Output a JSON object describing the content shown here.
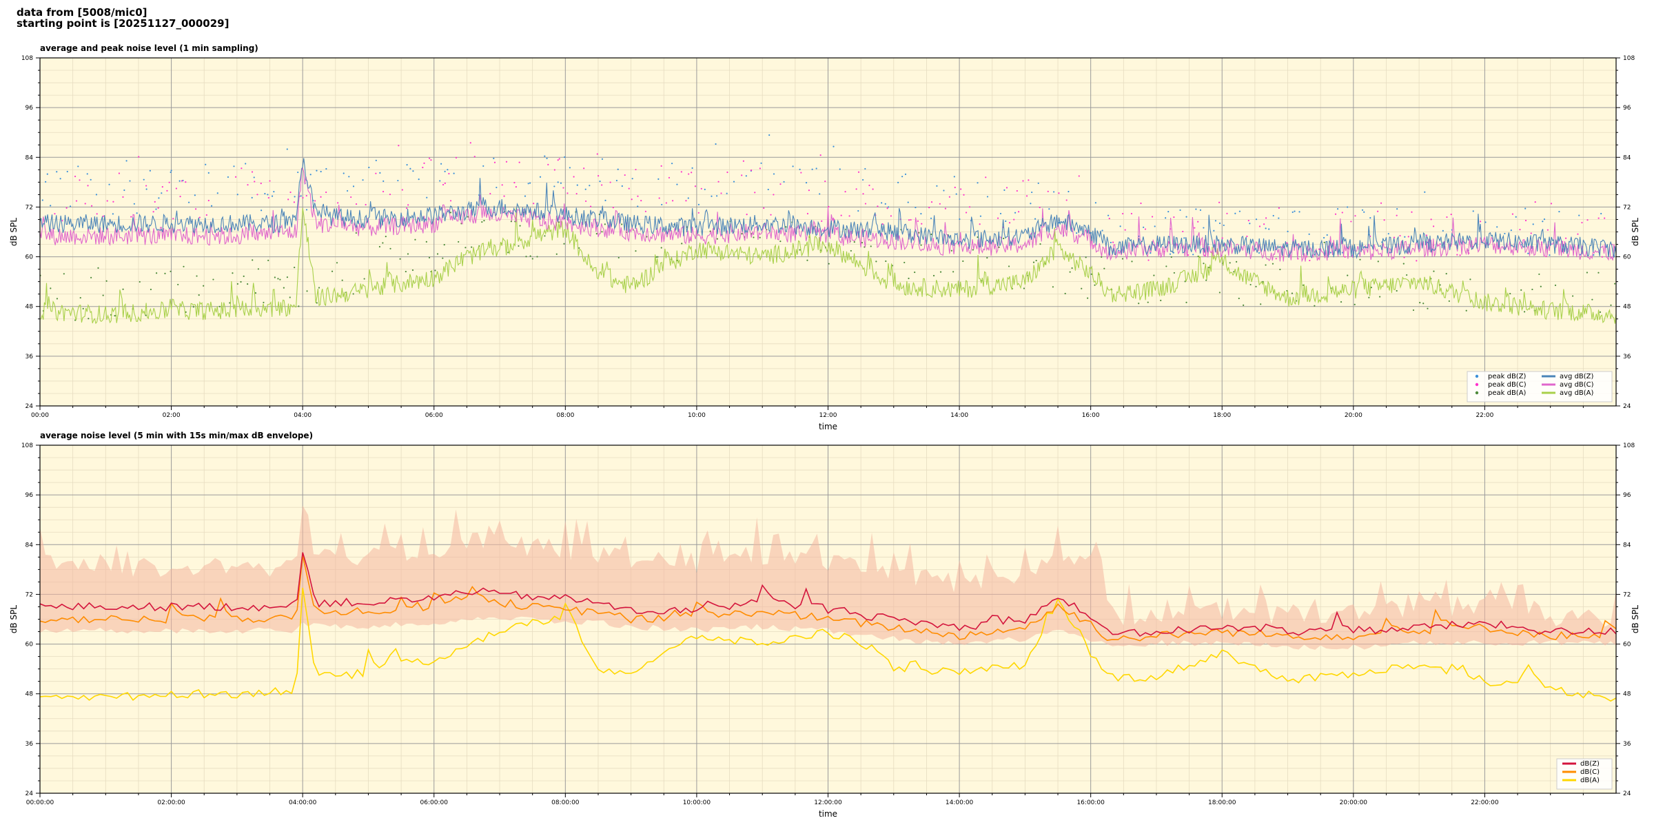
{
  "header": {
    "line1": "data from [5008/mic0]",
    "line2": "starting point is [20251127_000029]"
  },
  "colors": {
    "plot_bg": "#fff8dc",
    "grid_major": "#9a9a9a",
    "grid_minor": "#e6dcc0",
    "peak_z": "#3a8fd9",
    "peak_c": "#ff33cc",
    "peak_a": "#4d8a3a",
    "avg_z": "#4a84b8",
    "avg_c": "#e066cc",
    "avg_a": "#a8d04a",
    "dbz": "#d4143c",
    "dbc": "#ff8c00",
    "dba": "#ffd700",
    "envelope": "#f4b6a0"
  },
  "chart_data": [
    {
      "type": "line",
      "title": "average and peak noise level (1 min sampling)",
      "xlabel": "time",
      "ylabel": "dB SPL",
      "ylabel_right": "dB SPL",
      "xlim_hours": [
        0,
        24
      ],
      "ylim": [
        24,
        108
      ],
      "yticks": [
        "24",
        "36",
        "48",
        "60",
        "72",
        "84",
        "96",
        "108"
      ],
      "xticks": [
        "00:00",
        "02:00",
        "04:00",
        "06:00",
        "08:00",
        "10:00",
        "12:00",
        "14:00",
        "16:00",
        "18:00",
        "20:00",
        "22:00"
      ],
      "grid": true,
      "legend_position": "bottom-right",
      "legend": [
        {
          "label": "peak dB(Z)",
          "kind": "dot",
          "color_key": "peak_z"
        },
        {
          "label": "peak dB(C)",
          "kind": "dot",
          "color_key": "peak_c"
        },
        {
          "label": "peak dB(A)",
          "kind": "dot",
          "color_key": "peak_a"
        },
        {
          "label": "avg dB(Z)",
          "kind": "line",
          "color_key": "avg_z"
        },
        {
          "label": "avg dB(C)",
          "kind": "line",
          "color_key": "avg_c"
        },
        {
          "label": "avg dB(A)",
          "kind": "line",
          "color_key": "avg_a"
        }
      ],
      "series": [
        {
          "name": "avg dB(Z)",
          "x": [
            0,
            1,
            2,
            3,
            3.9,
            4.0,
            4.2,
            5,
            6,
            6.5,
            7,
            8,
            8.5,
            9,
            10,
            11,
            12,
            13,
            14,
            15,
            15.5,
            16,
            16.3,
            17,
            18,
            19,
            20,
            21,
            22,
            23,
            24
          ],
          "y": [
            68,
            68,
            68,
            68,
            68,
            84,
            70,
            69,
            70,
            71,
            72,
            70,
            69,
            68,
            67,
            68,
            67,
            66,
            64,
            65,
            69,
            66,
            62,
            63,
            63,
            62,
            62,
            63,
            64,
            63,
            62
          ]
        },
        {
          "name": "avg dB(C)",
          "x": [
            0,
            1,
            2,
            3,
            3.9,
            4.0,
            4.2,
            5,
            6,
            6.5,
            7,
            8,
            8.5,
            9,
            10,
            11,
            12,
            13,
            14,
            15,
            15.5,
            16,
            16.3,
            17,
            18,
            19,
            20,
            21,
            22,
            23,
            24
          ],
          "y": [
            65,
            65,
            65,
            65,
            66,
            82,
            68,
            67,
            68,
            70,
            70,
            68,
            67,
            66,
            65,
            66,
            65,
            64,
            62,
            63,
            67,
            64,
            61,
            62,
            62,
            61,
            61,
            62,
            63,
            62,
            61
          ]
        },
        {
          "name": "avg dB(A)",
          "x": [
            0,
            1,
            2,
            3,
            3.9,
            4.0,
            4.2,
            5,
            6,
            6.5,
            7,
            8,
            8.5,
            9,
            10,
            11,
            12,
            13,
            14,
            15,
            15.5,
            16,
            16.3,
            17,
            18,
            19,
            20,
            21,
            22,
            23,
            24
          ],
          "y": [
            47,
            46,
            47,
            47,
            48,
            72,
            50,
            52,
            55,
            60,
            62,
            67,
            55,
            53,
            62,
            60,
            63,
            53,
            52,
            54,
            62,
            56,
            51,
            52,
            58,
            50,
            52,
            54,
            49,
            47,
            46
          ]
        }
      ],
      "peak_ranges": [
        {
          "name": "peak dB(Z)",
          "x": [
            0,
            4,
            7,
            9,
            12,
            15,
            16.3,
            20,
            24
          ],
          "y": [
            76,
            77,
            80,
            78,
            76,
            74,
            66,
            66,
            66
          ]
        },
        {
          "name": "peak dB(C)",
          "x": [
            0,
            4,
            7,
            9,
            12,
            15,
            16.3,
            20,
            24
          ],
          "y": [
            74,
            76,
            79,
            77,
            74,
            73,
            65,
            65,
            65
          ]
        },
        {
          "name": "peak dB(A)",
          "x": [
            0,
            4,
            7,
            9,
            12,
            15,
            16.3,
            20,
            24
          ],
          "y": [
            50,
            54,
            66,
            64,
            62,
            58,
            54,
            54,
            50
          ]
        }
      ]
    },
    {
      "type": "line",
      "title": "average noise level (5 min with 15s min/max dB envelope)",
      "xlabel": "time",
      "ylabel": "dB SPL",
      "ylabel_right": "dB SPL",
      "xlim_hours": [
        0,
        24
      ],
      "ylim": [
        24,
        108
      ],
      "yticks": [
        "24",
        "36",
        "48",
        "60",
        "72",
        "84",
        "96",
        "108"
      ],
      "xticks": [
        "00:00:00",
        "02:00:00",
        "04:00:00",
        "06:00:00",
        "08:00:00",
        "10:00:00",
        "12:00:00",
        "14:00:00",
        "16:00:00",
        "18:00:00",
        "20:00:00",
        "22:00:00"
      ],
      "grid": true,
      "legend_position": "bottom-right",
      "legend": [
        {
          "label": "dB(Z)",
          "kind": "line",
          "color_key": "dbz"
        },
        {
          "label": "dB(C)",
          "kind": "line",
          "color_key": "dbc"
        },
        {
          "label": "dB(A)",
          "kind": "line",
          "color_key": "dba"
        }
      ],
      "series": [
        {
          "name": "dB(Z)",
          "x": [
            0,
            1,
            2,
            3,
            3.9,
            4.0,
            4.2,
            5,
            6,
            6.5,
            7,
            8,
            8.5,
            9,
            10,
            11,
            12,
            13,
            14,
            15,
            15.5,
            16,
            16.3,
            17,
            18,
            19,
            20,
            21,
            22,
            23,
            24
          ],
          "y": [
            69,
            69,
            69,
            69,
            69,
            83,
            70,
            70,
            71,
            73,
            72,
            71,
            70,
            68,
            68,
            70,
            68,
            66,
            64,
            66,
            71,
            67,
            62,
            63,
            64,
            63,
            63,
            64,
            65,
            63,
            63
          ]
        },
        {
          "name": "dB(C)",
          "x": [
            0,
            1,
            2,
            3,
            3.9,
            4.0,
            4.2,
            5,
            6,
            6.5,
            7,
            8,
            8.5,
            9,
            10,
            11,
            12,
            13,
            14,
            15,
            15.5,
            16,
            16.3,
            17,
            18,
            19,
            20,
            21,
            22,
            23,
            24
          ],
          "y": [
            66,
            66,
            66,
            66,
            66,
            81,
            68,
            68,
            69,
            71,
            70,
            68,
            68,
            66,
            66,
            68,
            66,
            64,
            62,
            64,
            69,
            65,
            61,
            62,
            63,
            62,
            62,
            63,
            64,
            62,
            62
          ]
        },
        {
          "name": "dB(A)",
          "x": [
            0,
            1,
            2,
            3,
            3.9,
            4.0,
            4.2,
            5,
            6,
            6.5,
            7,
            8,
            8.5,
            9,
            10,
            11,
            12,
            13,
            14,
            15,
            15.5,
            16,
            16.3,
            17,
            18,
            19,
            20,
            21,
            22,
            23,
            24
          ],
          "y": [
            48,
            47,
            48,
            48,
            49,
            74,
            52,
            53,
            56,
            60,
            63,
            67,
            54,
            53,
            62,
            60,
            63,
            54,
            53,
            55,
            68,
            57,
            52,
            52,
            58,
            51,
            53,
            55,
            51,
            49,
            47
          ]
        }
      ],
      "envelope": {
        "name": "dB(Z) min/max",
        "x": [
          0,
          1,
          2,
          3,
          3.9,
          4.0,
          4.2,
          5,
          6,
          6.5,
          7,
          8,
          8.5,
          9,
          10,
          11,
          12,
          13,
          14,
          15,
          15.5,
          16,
          16.3,
          17,
          18,
          19,
          20,
          21,
          22,
          23,
          24
        ],
        "min": [
          64,
          64,
          64,
          64,
          64,
          66,
          65,
          65,
          66,
          67,
          67,
          66,
          66,
          65,
          64,
          65,
          64,
          62,
          61,
          62,
          64,
          62,
          60,
          61,
          61,
          60,
          60,
          61,
          61,
          61,
          61
        ],
        "max": [
          80,
          79,
          79,
          79,
          79,
          96,
          81,
          82,
          83,
          86,
          85,
          83,
          82,
          81,
          80,
          82,
          80,
          78,
          75,
          78,
          83,
          80,
          67,
          68,
          69,
          67,
          68,
          69,
          70,
          67,
          66
        ]
      }
    }
  ]
}
